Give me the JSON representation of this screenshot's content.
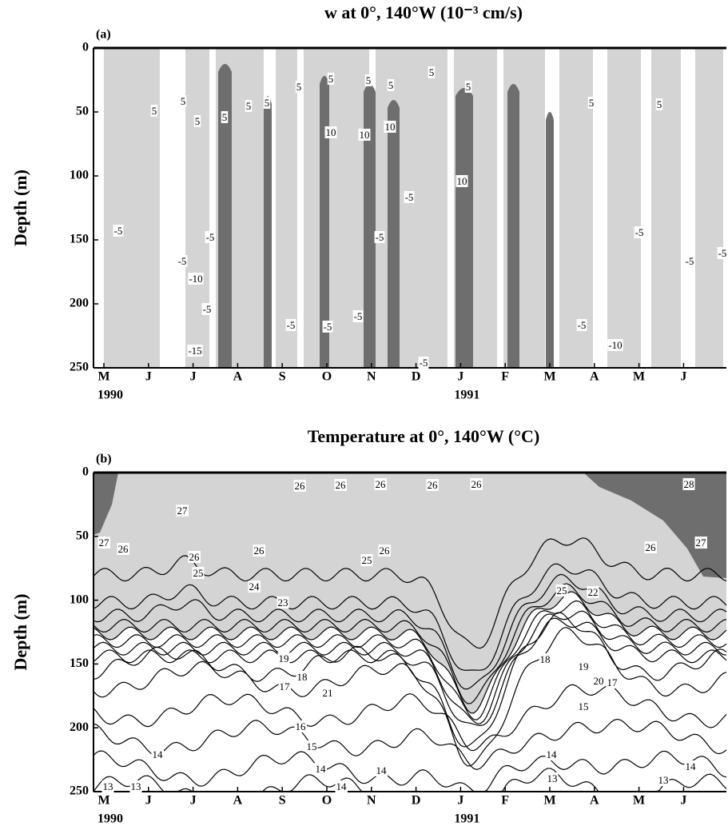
{
  "chart_data": [
    {
      "type": "contour",
      "panel_label": "(a)",
      "title": "w at 0°, 140°W (10⁻³ cm/s)",
      "ylabel": "Depth (m)",
      "categories": [
        "M",
        "J",
        "J",
        "A",
        "S",
        "O",
        "N",
        "D",
        "J",
        "F",
        "M",
        "A",
        "M",
        "J"
      ],
      "x_year_labels": [
        "1990",
        null,
        null,
        null,
        null,
        null,
        null,
        null,
        "1991",
        null,
        null,
        null,
        null,
        null
      ],
      "ylim": [
        0,
        250
      ],
      "yticks": [
        0,
        50,
        100,
        150,
        200,
        250
      ],
      "y_inverted": true,
      "colors": {
        "light": "#d4d4d4",
        "dark": "#6e6e6e"
      },
      "contour_labels": [
        5,
        5,
        5,
        5,
        5,
        5,
        5,
        5,
        5,
        5,
        5,
        5,
        5,
        5,
        10,
        10,
        10,
        10,
        -5,
        -5,
        -5,
        -5,
        -5,
        -5,
        -5,
        -5,
        -5,
        -5,
        -5,
        -5,
        -5,
        -5,
        -10,
        -15,
        -10
      ]
    },
    {
      "type": "contour",
      "panel_label": "(b)",
      "title": "Temperature at 0°, 140°W (°C)",
      "ylabel": "Depth (m)",
      "categories": [
        "M",
        "J",
        "J",
        "A",
        "S",
        "O",
        "N",
        "D",
        "J",
        "F",
        "M",
        "A",
        "M",
        "J"
      ],
      "x_year_labels": [
        "1990",
        null,
        null,
        null,
        null,
        null,
        null,
        null,
        "1991",
        null,
        null,
        null,
        null,
        null
      ],
      "ylim": [
        0,
        250
      ],
      "yticks": [
        0,
        50,
        100,
        150,
        200,
        250
      ],
      "y_inverted": true,
      "colors": {
        "light": "#d4d4d4",
        "dark": "#6e6e6e"
      },
      "levels": [
        13,
        14,
        15,
        16,
        17,
        18,
        19,
        20,
        21,
        22,
        23,
        24,
        25,
        26
      ],
      "contour_labels": [
        27,
        26,
        27,
        26,
        25,
        26,
        26,
        26,
        26,
        26,
        26,
        28,
        25,
        26,
        27,
        26,
        24,
        23,
        25,
        22,
        19,
        21,
        19,
        20,
        17,
        18,
        17,
        18,
        16,
        15,
        14,
        15,
        14,
        14,
        14,
        14,
        13,
        13,
        13,
        13,
        14
      ]
    }
  ]
}
